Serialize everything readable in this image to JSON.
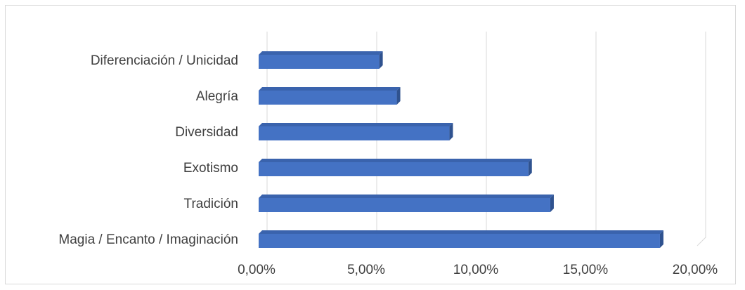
{
  "chart_data": {
    "type": "bar",
    "orientation": "horizontal",
    "style": "3d-clustered-bar",
    "title": "",
    "xlabel": "",
    "ylabel": "",
    "categories": [
      "Diferenciación / Unicidad",
      "Alegría",
      "Diversidad",
      "Exotismo",
      "Tradición",
      "Magia / Encanto / Imaginación"
    ],
    "values": [
      5.5,
      6.3,
      8.7,
      12.3,
      13.3,
      18.3
    ],
    "xlim": [
      0,
      20
    ],
    "x_ticks": [
      0,
      5,
      10,
      15,
      20
    ],
    "x_tick_labels": [
      "0,00%",
      "5,00%",
      "10,00%",
      "15,00%",
      "20,00%"
    ],
    "grid": true,
    "legend": "none",
    "colors": {
      "bar_front": "#4472c4",
      "bar_top": "#3a63ad",
      "bar_side": "#2f528f",
      "gridline": "#d9d9d9",
      "label": "#404040",
      "border": "#d9d9d9"
    }
  }
}
